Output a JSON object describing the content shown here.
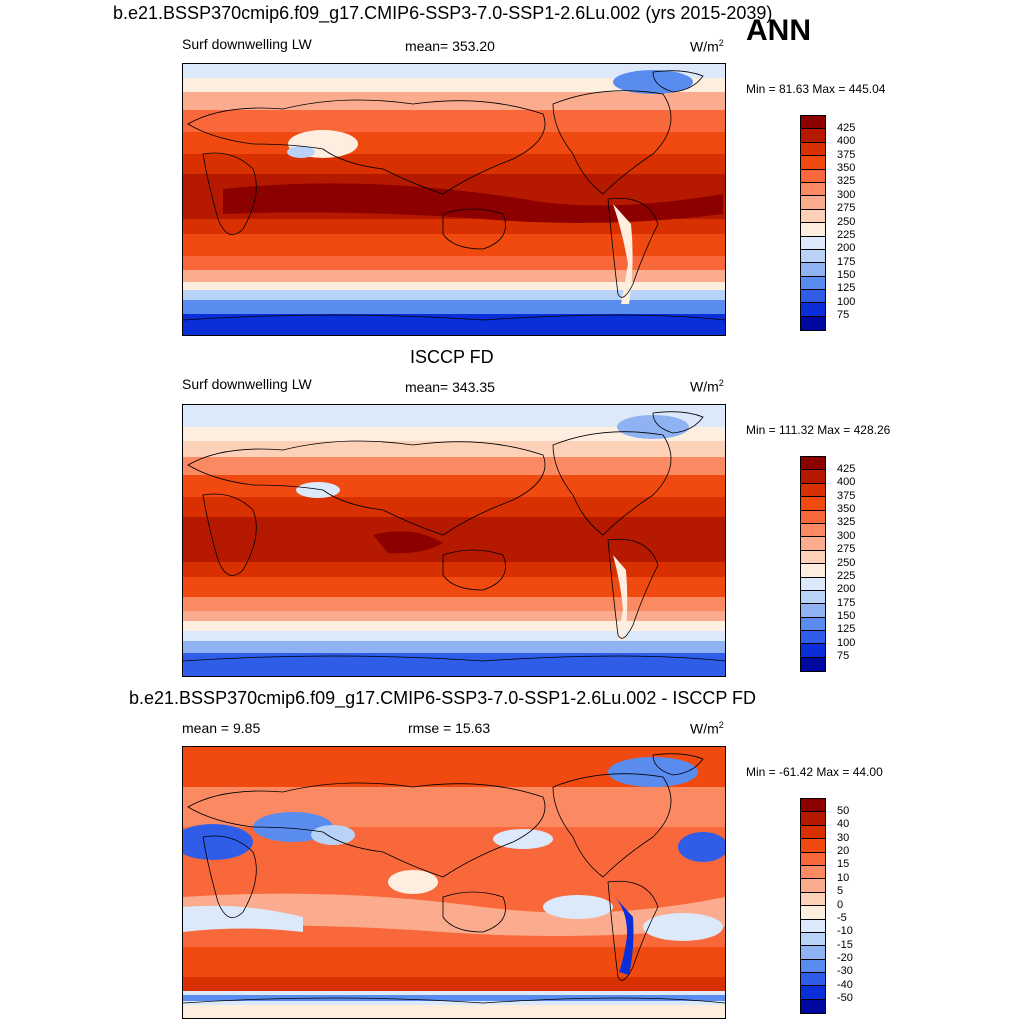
{
  "season": "ANN",
  "panels": [
    {
      "title": "b.e21.BSSP370cmip6.f09_g17.CMIP6-SSP3-7.0-SSP1-2.6Lu.002 (yrs 2015-2039)",
      "left_label": "Surf downwelling LW",
      "center_label": "mean= 353.20",
      "units": "W/m",
      "units_sup": "2",
      "minmax": "Min =  81.63 Max = 445.04",
      "kind": "abs"
    },
    {
      "title": "ISCCP FD",
      "left_label": "Surf downwelling LW",
      "center_label": "mean= 343.35",
      "units": "W/m",
      "units_sup": "2",
      "minmax": "Min = 111.32 Max = 428.26",
      "kind": "abs"
    },
    {
      "title": "b.e21.BSSP370cmip6.f09_g17.CMIP6-SSP3-7.0-SSP1-2.6Lu.002 - ISCCP FD",
      "left_label": "mean =   9.85",
      "center_label": "rmse =  15.63",
      "units": "W/m",
      "units_sup": "2",
      "minmax": "Min = -61.42 Max =  44.00",
      "kind": "diff"
    }
  ],
  "colorbars": {
    "abs": {
      "labels": [
        "425",
        "400",
        "375",
        "350",
        "325",
        "300",
        "275",
        "250",
        "225",
        "200",
        "175",
        "150",
        "125",
        "100",
        "75"
      ],
      "colors": [
        "#8c0000",
        "#b51a00",
        "#d83000",
        "#f04a10",
        "#f8683a",
        "#fb8a62",
        "#fbac8e",
        "#fdd0b8",
        "#fdeee0",
        "#dce9fb",
        "#b9d2f7",
        "#8fb2f2",
        "#5a8cf0",
        "#2f5de8",
        "#0a2fd8",
        "#0008a0"
      ]
    },
    "diff": {
      "labels": [
        "50",
        "40",
        "30",
        "20",
        "15",
        "10",
        "5",
        "0",
        "-5",
        "-10",
        "-15",
        "-20",
        "-30",
        "-40",
        "-50"
      ],
      "colors": [
        "#8c0000",
        "#b51a00",
        "#d83000",
        "#f04a10",
        "#f8683a",
        "#fb8a62",
        "#fbac8e",
        "#fdd0b8",
        "#fdeee0",
        "#dce9fb",
        "#b9d2f7",
        "#8fb2f2",
        "#5a8cf0",
        "#2f5de8",
        "#0a2fd8",
        "#0008a0"
      ]
    }
  }
}
